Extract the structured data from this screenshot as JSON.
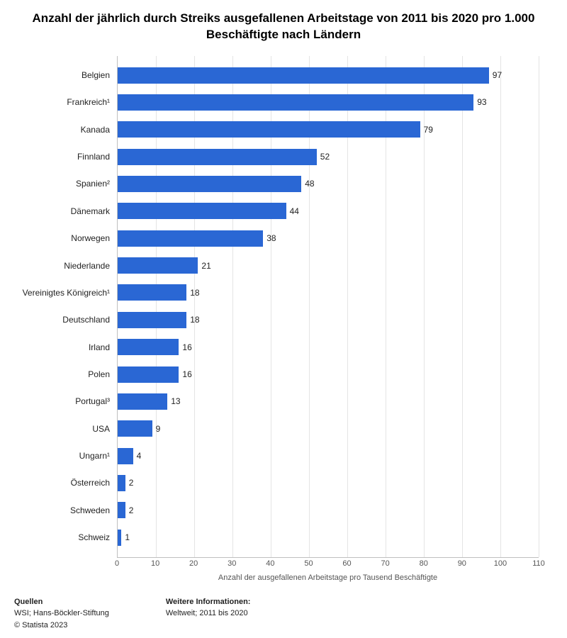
{
  "chart": {
    "type": "bar-horizontal",
    "title": "Anzahl der jährlich durch Streiks ausgefallenen Arbeitstage von 2011 bis 2020 pro 1.000 Beschäftigte nach Ländern",
    "title_fontsize": 17,
    "background_color": "#ffffff",
    "bar_color": "#2a67d4",
    "grid_color": "#e4e4e4",
    "label_fontsize": 12,
    "tick_fontsize": 11,
    "xmax": 110,
    "xtick_step": 10,
    "xlabel": "Anzahl der ausgefallenen Arbeitstage pro Tausend Beschäftigte",
    "data": [
      {
        "label": "Belgien",
        "value": 97
      },
      {
        "label": "Frankreich¹",
        "value": 93
      },
      {
        "label": "Kanada",
        "value": 79
      },
      {
        "label": "Finnland",
        "value": 52
      },
      {
        "label": "Spanien²",
        "value": 48
      },
      {
        "label": "Dänemark",
        "value": 44
      },
      {
        "label": "Norwegen",
        "value": 38
      },
      {
        "label": "Niederlande",
        "value": 21
      },
      {
        "label": "Vereinigtes Königreich¹",
        "value": 18
      },
      {
        "label": "Deutschland",
        "value": 18
      },
      {
        "label": "Irland",
        "value": 16
      },
      {
        "label": "Polen",
        "value": 16
      },
      {
        "label": "Portugal³",
        "value": 13
      },
      {
        "label": "USA",
        "value": 9
      },
      {
        "label": "Ungarn¹",
        "value": 4
      },
      {
        "label": "Österreich",
        "value": 2
      },
      {
        "label": "Schweden",
        "value": 2
      },
      {
        "label": "Schweiz",
        "value": 1
      }
    ],
    "xticks": [
      0,
      10,
      20,
      30,
      40,
      50,
      60,
      70,
      80,
      90,
      100,
      110
    ]
  },
  "footer": {
    "sources_head": "Quellen",
    "sources_line1": "WSI; Hans-Böckler-Stiftung",
    "sources_line2": "© Statista 2023",
    "info_head": "Weitere Informationen:",
    "info_line1": "Weltweit; 2011 bis 2020"
  }
}
